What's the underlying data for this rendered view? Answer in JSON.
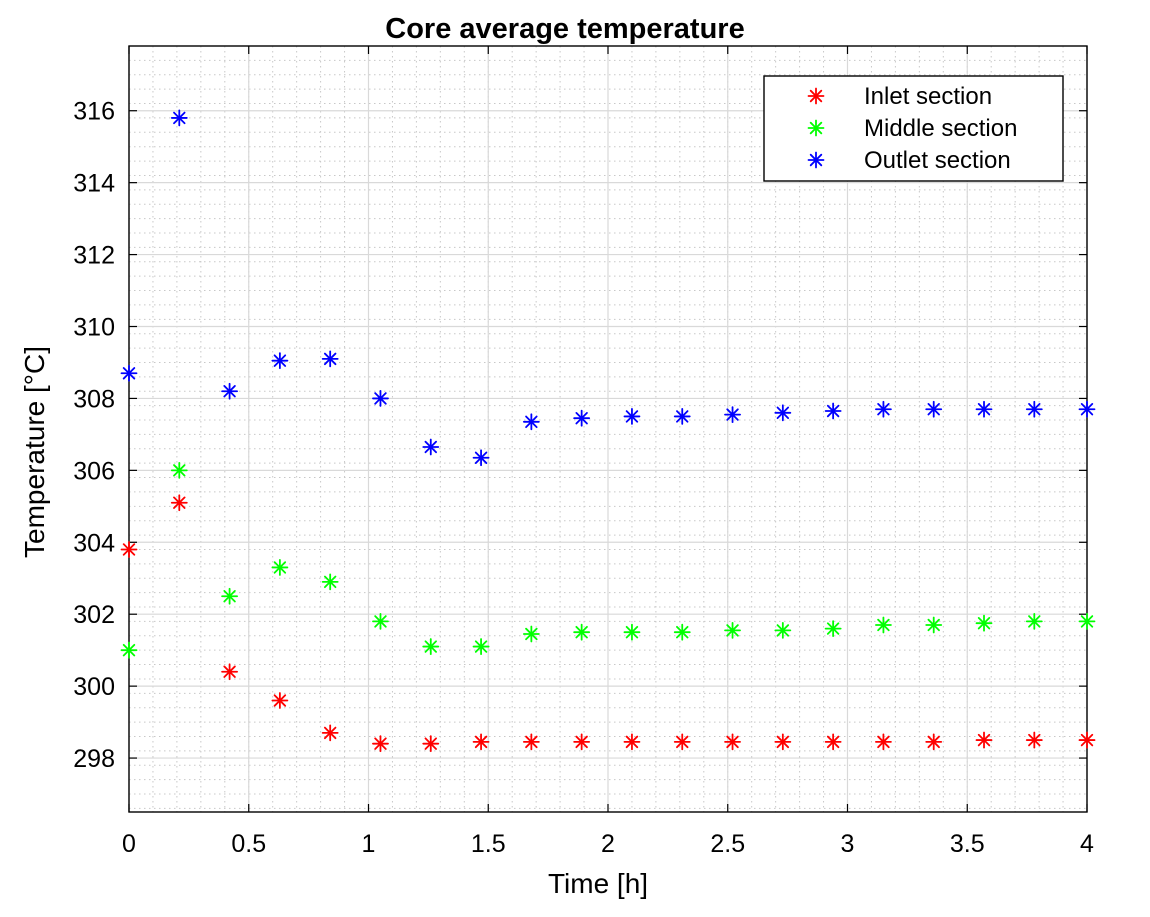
{
  "chart_data": {
    "type": "scatter",
    "title": "Core average temperature",
    "xlabel": "Time [h]",
    "ylabel": "Temperature [°C]",
    "xlim": [
      0,
      4
    ],
    "ylim": [
      296.5,
      317.8
    ],
    "xticks": [
      0,
      0.5,
      1,
      1.5,
      2,
      2.5,
      3,
      3.5,
      4
    ],
    "xtick_labels": [
      "0",
      "0.5",
      "1",
      "1.5",
      "2",
      "2.5",
      "3",
      "3.5",
      "4"
    ],
    "yticks": [
      298,
      300,
      302,
      304,
      306,
      308,
      310,
      312,
      314,
      316
    ],
    "ytick_labels": [
      "298",
      "300",
      "302",
      "304",
      "306",
      "308",
      "310",
      "312",
      "314",
      "316"
    ],
    "grid": true,
    "minor_grid": true,
    "marker": "*",
    "legend_position": "top-right",
    "x": [
      0,
      0.21,
      0.42,
      0.63,
      0.84,
      1.05,
      1.26,
      1.47,
      1.68,
      1.89,
      2.1,
      2.31,
      2.52,
      2.73,
      2.94,
      3.15,
      3.36,
      3.57,
      3.78,
      4.0
    ],
    "series": [
      {
        "name": "Inlet section",
        "color": "#ff0000",
        "values": [
          303.8,
          305.1,
          300.4,
          299.6,
          298.7,
          298.4,
          298.4,
          298.45,
          298.45,
          298.45,
          298.45,
          298.45,
          298.45,
          298.45,
          298.45,
          298.45,
          298.45,
          298.5,
          298.5,
          298.5
        ]
      },
      {
        "name": "Middle section",
        "color": "#00ff00",
        "values": [
          301.0,
          306.0,
          302.5,
          303.3,
          302.9,
          301.8,
          301.1,
          301.1,
          301.45,
          301.5,
          301.5,
          301.5,
          301.55,
          301.55,
          301.6,
          301.7,
          301.7,
          301.75,
          301.8,
          301.8
        ]
      },
      {
        "name": "Outlet section",
        "color": "#0000ff",
        "values": [
          308.7,
          315.8,
          308.2,
          309.05,
          309.1,
          308.0,
          306.65,
          306.35,
          307.35,
          307.45,
          307.5,
          307.5,
          307.55,
          307.6,
          307.65,
          307.7,
          307.7,
          307.7,
          307.7,
          307.7
        ]
      }
    ]
  }
}
